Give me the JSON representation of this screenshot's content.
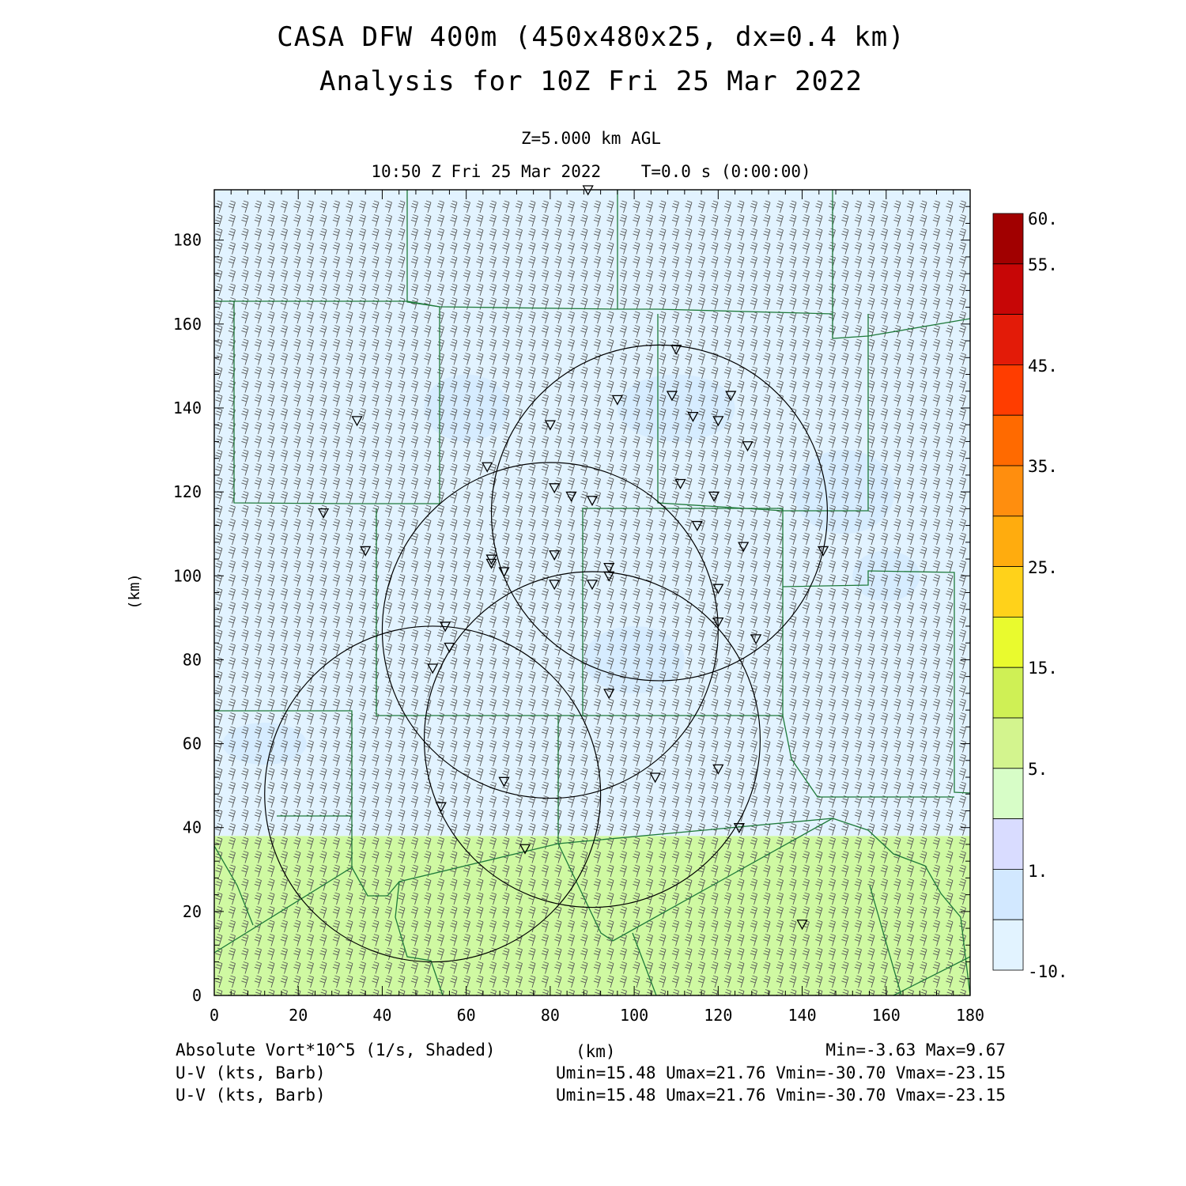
{
  "title": {
    "line1": "CASA DFW 400m (450x480x25, dx=0.4 km)",
    "line2": "Analysis for 10Z Fri 25 Mar 2022"
  },
  "subtitle": {
    "level": "Z=5.000 km AGL",
    "time": "10:50 Z Fri 25 Mar 2022    T=0.0 s (0:00:00)"
  },
  "footer": {
    "field_label": "Absolute Vort*10^5 (1/s, Shaded)",
    "xunit": "(km)",
    "minmax": "Min=-3.63 Max=9.67",
    "barb1_label": "U-V (kts, Barb)",
    "barb1_stats": "Umin=15.48 Umax=21.76 Vmin=-30.70 Vmax=-23.15",
    "barb2_label": "U-V (kts, Barb)",
    "barb2_stats": "Umin=15.48 Umax=21.76 Vmin=-30.70 Vmax=-23.15"
  },
  "chart_data": {
    "type": "heatmap",
    "xlabel": "(km)",
    "ylabel": "(km)",
    "xlim": [
      0,
      180
    ],
    "ylim": [
      0,
      192
    ],
    "xticks": [
      0,
      20,
      40,
      60,
      80,
      100,
      120,
      140,
      160,
      180
    ],
    "yticks": [
      0,
      20,
      40,
      60,
      80,
      100,
      120,
      140,
      160,
      180
    ],
    "field_regions": [
      {
        "description": "y above 38 km",
        "value_range": "-10 to 1",
        "color": "#e2f3ff"
      },
      {
        "description": "y below 38 km",
        "value_range": "5 to 10",
        "color": "#cff9a2"
      }
    ],
    "wind": {
      "u_range": [
        15.48,
        21.76
      ],
      "v_range": [
        -30.7,
        -23.15
      ],
      "units": "kts"
    },
    "radar_range_circles": [
      {
        "center": [
          52,
          48
        ],
        "radius_km": 40
      },
      {
        "center": [
          80,
          87
        ],
        "radius_km": 40
      },
      {
        "center": [
          90,
          61
        ],
        "radius_km": 40
      },
      {
        "center": [
          106,
          115
        ],
        "radius_km": 40
      }
    ],
    "station_markers": [
      [
        89,
        192
      ],
      [
        110,
        154
      ],
      [
        96,
        142
      ],
      [
        109,
        143
      ],
      [
        123,
        143
      ],
      [
        114,
        138
      ],
      [
        120,
        137
      ],
      [
        34,
        137
      ],
      [
        80,
        136
      ],
      [
        127,
        131
      ],
      [
        65,
        126
      ],
      [
        81,
        121
      ],
      [
        85,
        119
      ],
      [
        90,
        118
      ],
      [
        111,
        122
      ],
      [
        119,
        119
      ],
      [
        26,
        115
      ],
      [
        115,
        112
      ],
      [
        36,
        106
      ],
      [
        66,
        104
      ],
      [
        81,
        105
      ],
      [
        126,
        107
      ],
      [
        145,
        106
      ],
      [
        66,
        103
      ],
      [
        69,
        101
      ],
      [
        94,
        102
      ],
      [
        94,
        100
      ],
      [
        81,
        98
      ],
      [
        90,
        98
      ],
      [
        120,
        97
      ],
      [
        55,
        88
      ],
      [
        56,
        83
      ],
      [
        52,
        78
      ],
      [
        120,
        89
      ],
      [
        129,
        85
      ],
      [
        94,
        72
      ],
      [
        69,
        51
      ],
      [
        105,
        52
      ],
      [
        120,
        54
      ],
      [
        54,
        45
      ],
      [
        125,
        40
      ],
      [
        74,
        35
      ],
      [
        140,
        17
      ]
    ]
  },
  "colorbar": {
    "labels": [
      "60.",
      "55.",
      "45.",
      "35.",
      "25.",
      "15.",
      "5.",
      "1.",
      "-10."
    ],
    "colors": [
      "#a10000",
      "#c70606",
      "#e31b08",
      "#ff3d00",
      "#ff6a00",
      "#ff8e0e",
      "#ffac0e",
      "#ffd21a",
      "#e9fa2e",
      "#cff055",
      "#d3f48e",
      "#d7fdc7",
      "#d9dcff",
      "#d2e8ff",
      "#e2f3ff"
    ]
  }
}
